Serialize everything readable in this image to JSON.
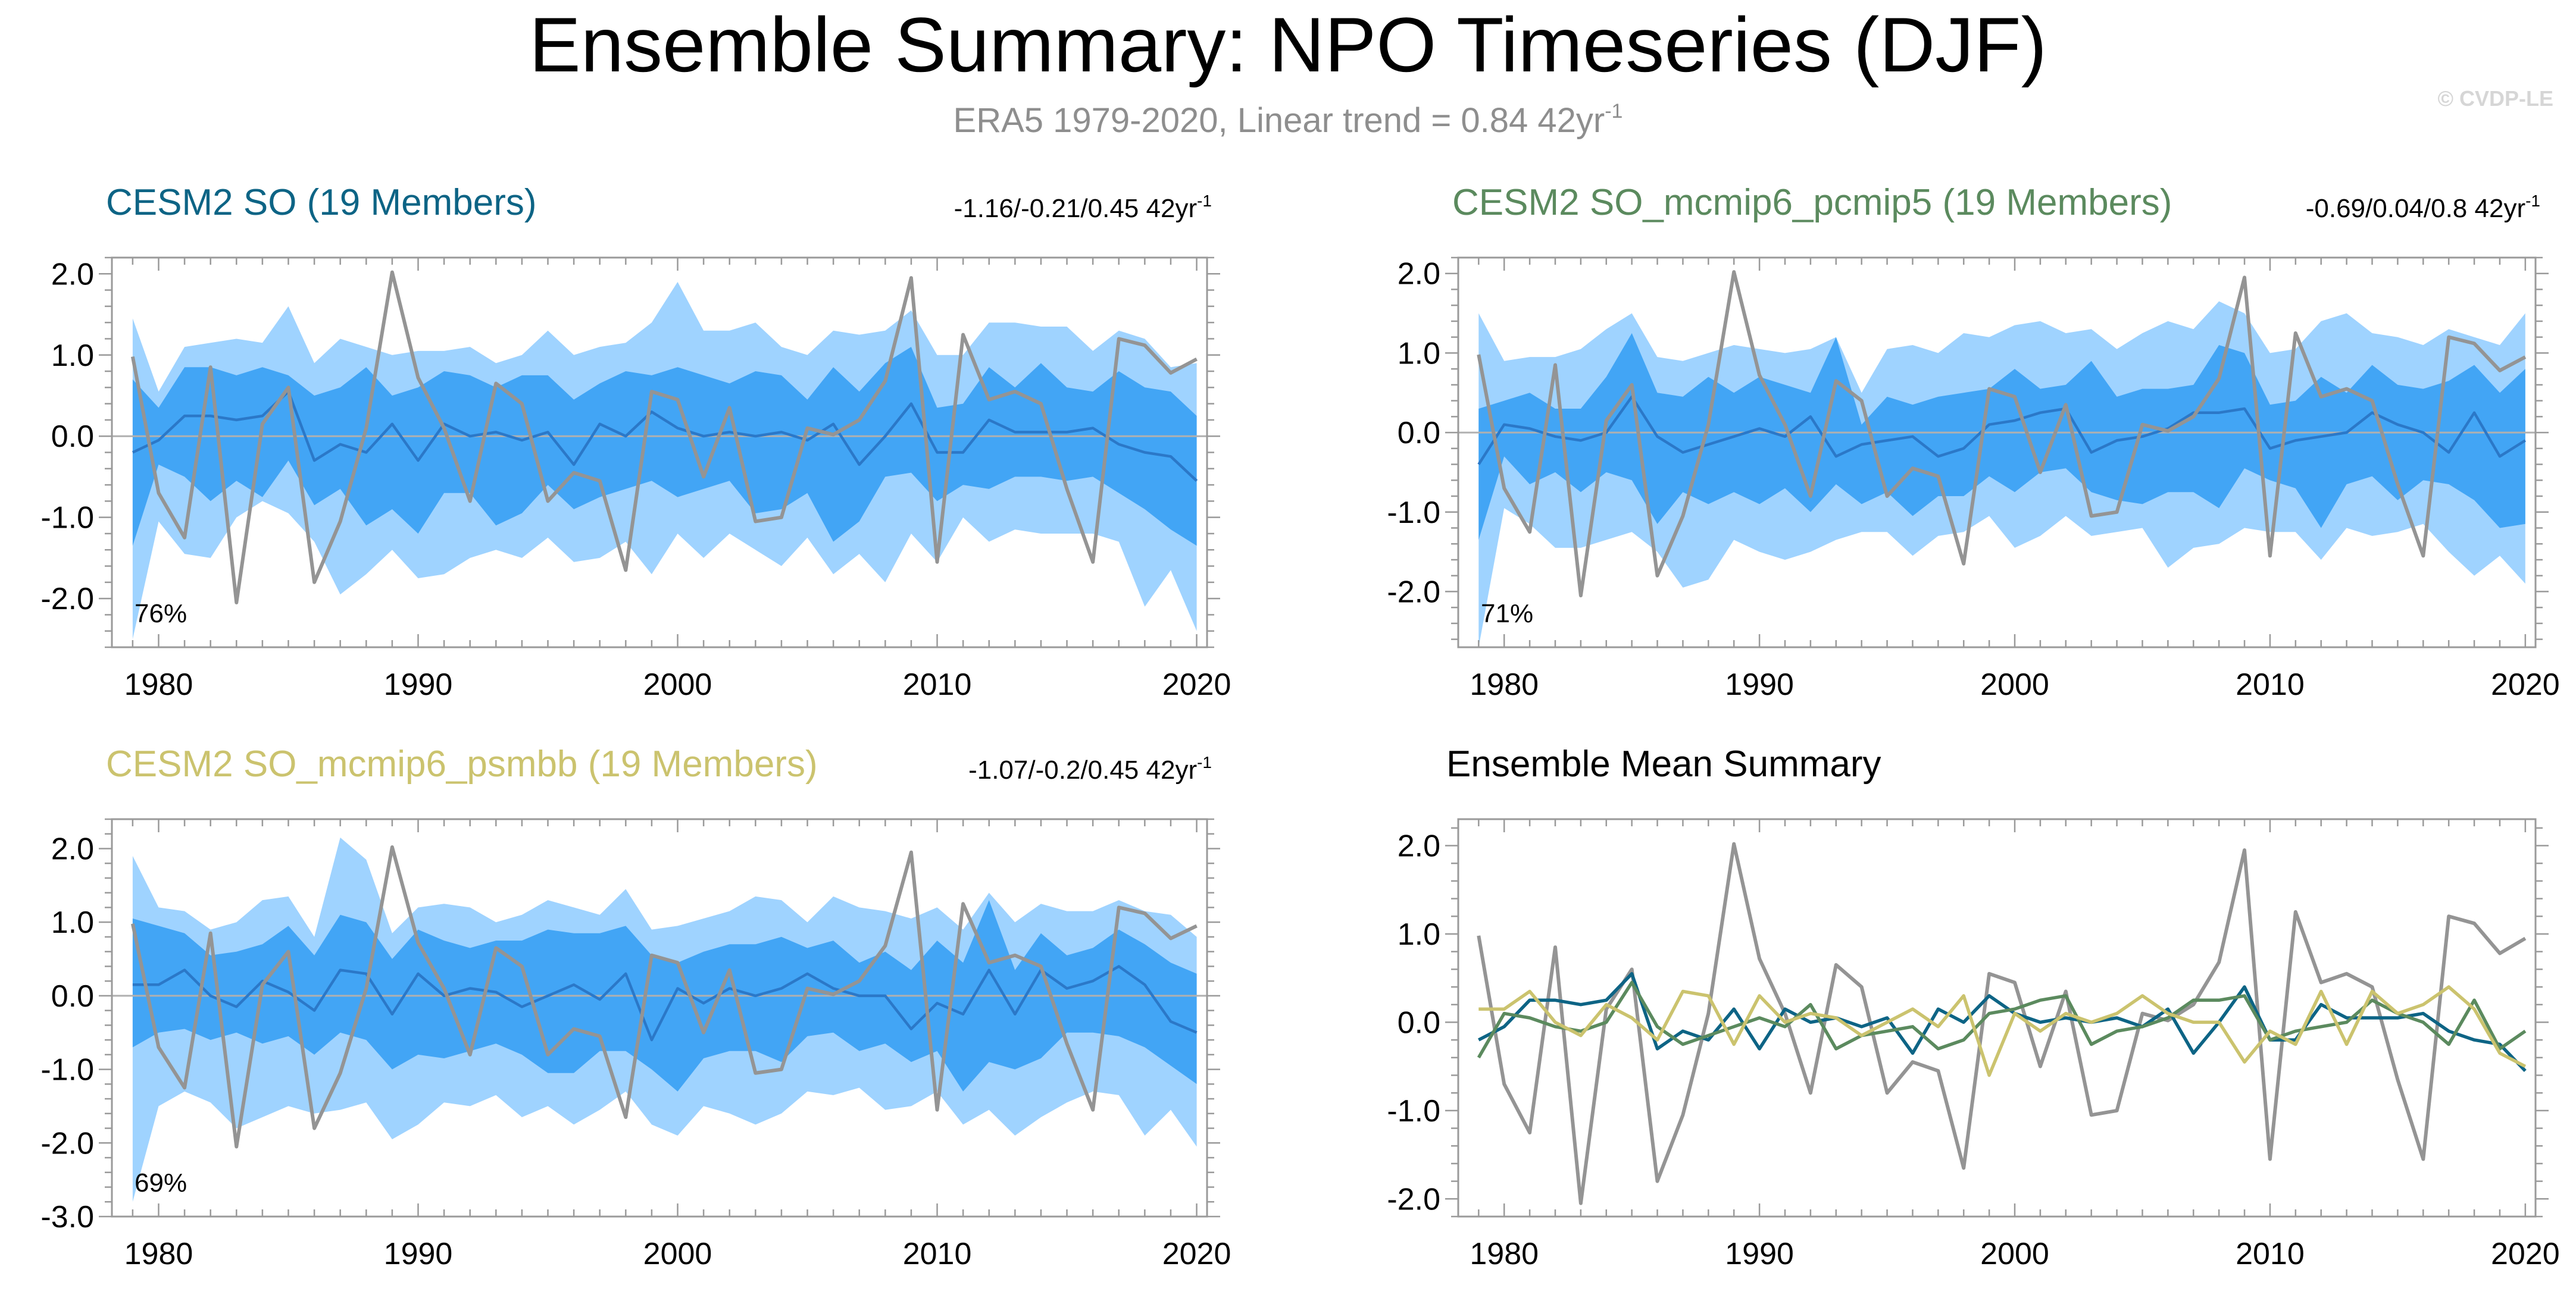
{
  "title": "Ensemble Summary: NPO Timeseries (DJF)",
  "subtitle_main": "ERA5 1979-2020, Linear trend = 0.84 42yr",
  "subtitle_sup": "-1",
  "credit": "© CVDP-LE",
  "colors": {
    "outer_band": "#9fd3ff",
    "inner_band": "#42a5f5",
    "ens_mean_line": "#2b78c8",
    "obs_line": "#949494",
    "zero_line": "#b0b0b0",
    "axis": "#9a9a9a",
    "cesm2_so": "#0d6485",
    "pcmip5": "#5b8a5e",
    "psmbb": "#cbc36e"
  },
  "chart_data": [
    {
      "id": "p1",
      "type": "area",
      "title": "CESM2 SO (19 Members)",
      "title_color": "#0d6485",
      "trend_text": "-1.16/-0.21/0.45 42yr",
      "trend_sup": "-1",
      "pct_text": "76%",
      "xlim": [
        1978.2,
        2020.4
      ],
      "ylim": [
        -2.6,
        2.2
      ],
      "xticks": [
        "1980",
        "1990",
        "2000",
        "2010",
        "2020"
      ],
      "yticks": [
        "2.0",
        "1.0",
        "0.0",
        "-1.0",
        "-2.0"
      ],
      "ytick_values": [
        2,
        1,
        0,
        -1,
        -2
      ],
      "years": [
        1979,
        1980,
        1981,
        1982,
        1983,
        1984,
        1985,
        1986,
        1987,
        1988,
        1989,
        1990,
        1991,
        1992,
        1993,
        1994,
        1995,
        1996,
        1997,
        1998,
        1999,
        2000,
        2001,
        2002,
        2003,
        2004,
        2005,
        2006,
        2007,
        2008,
        2009,
        2010,
        2011,
        2012,
        2013,
        2014,
        2015,
        2016,
        2017,
        2018,
        2019,
        2020
      ],
      "outer_upper": [
        1.45,
        0.55,
        1.1,
        1.15,
        1.2,
        1.15,
        1.6,
        0.9,
        1.2,
        1.1,
        1.0,
        1.05,
        1.05,
        1.1,
        0.9,
        1.0,
        1.3,
        1.0,
        1.1,
        1.15,
        1.4,
        1.9,
        1.3,
        1.3,
        1.4,
        1.1,
        1.0,
        1.3,
        1.25,
        1.3,
        1.55,
        1.0,
        1.0,
        1.4,
        1.4,
        1.35,
        1.35,
        1.05,
        1.3,
        1.2,
        0.85,
        0.9
      ],
      "inner_upper": [
        0.7,
        0.35,
        0.85,
        0.85,
        0.75,
        0.85,
        0.75,
        0.5,
        0.6,
        0.85,
        0.5,
        0.6,
        0.8,
        0.75,
        0.6,
        0.75,
        0.75,
        0.45,
        0.65,
        0.8,
        0.75,
        0.85,
        0.75,
        0.65,
        0.8,
        0.75,
        0.45,
        0.85,
        0.55,
        0.9,
        1.1,
        0.35,
        0.4,
        0.85,
        0.6,
        0.9,
        0.6,
        0.55,
        0.8,
        0.6,
        0.55,
        0.25
      ],
      "inner_lower": [
        -1.35,
        -0.35,
        -0.5,
        -0.8,
        -0.55,
        -0.75,
        -0.3,
        -0.85,
        -0.65,
        -1.1,
        -0.9,
        -1.2,
        -0.7,
        -0.7,
        -1.1,
        -0.95,
        -0.6,
        -0.9,
        -0.75,
        -0.65,
        -0.55,
        -0.75,
        -0.65,
        -0.55,
        -0.95,
        -0.9,
        -0.7,
        -1.3,
        -1.05,
        -0.5,
        -0.45,
        -0.8,
        -0.6,
        -0.65,
        -0.5,
        -0.5,
        -0.55,
        -0.5,
        -0.7,
        -0.9,
        -1.15,
        -1.35
      ],
      "outer_lower": [
        -2.5,
        -1.05,
        -1.45,
        -1.5,
        -1.0,
        -0.8,
        -0.95,
        -1.3,
        -1.95,
        -1.7,
        -1.4,
        -1.75,
        -1.7,
        -1.5,
        -1.4,
        -1.5,
        -1.25,
        -1.55,
        -1.5,
        -1.3,
        -1.7,
        -1.2,
        -1.5,
        -1.2,
        -1.4,
        -1.6,
        -1.25,
        -1.7,
        -1.45,
        -1.8,
        -1.2,
        -1.55,
        -1.0,
        -1.3,
        -1.15,
        -1.2,
        -1.2,
        -1.2,
        -1.3,
        -2.1,
        -1.65,
        -2.4
      ],
      "ens_mean": [
        -0.2,
        -0.05,
        0.25,
        0.25,
        0.2,
        0.25,
        0.55,
        -0.3,
        -0.1,
        -0.2,
        0.15,
        -0.3,
        0.15,
        0.0,
        0.05,
        -0.05,
        0.05,
        -0.35,
        0.15,
        0.0,
        0.3,
        0.1,
        0.0,
        0.05,
        0.0,
        0.05,
        -0.05,
        0.15,
        -0.35,
        0.0,
        0.4,
        -0.2,
        -0.2,
        0.2,
        0.05,
        0.05,
        0.05,
        0.1,
        -0.1,
        -0.2,
        -0.25,
        -0.55
      ],
      "obs": [
        0.98,
        -0.7,
        -1.25,
        0.85,
        -2.05,
        0.15,
        0.6,
        -1.8,
        -1.05,
        0.1,
        2.02,
        0.72,
        0.1,
        -0.8,
        0.65,
        0.4,
        -0.8,
        -0.45,
        -0.55,
        -1.65,
        0.55,
        0.45,
        -0.5,
        0.35,
        -1.05,
        -1.0,
        0.1,
        0.02,
        0.2,
        0.68,
        1.95,
        -1.55,
        1.25,
        0.45,
        0.55,
        0.4,
        -0.65,
        -1.55,
        1.2,
        1.12,
        0.78,
        0.95
      ]
    },
    {
      "id": "p2",
      "type": "area",
      "title": "CESM2 SO_mcmip6_pcmip5 (19 Members)",
      "title_color": "#5b8a5e",
      "trend_text": "-0.69/0.04/0.8 42yr",
      "trend_sup": "-1",
      "pct_text": "71%",
      "xlim": [
        1978.2,
        2020.4
      ],
      "ylim": [
        -2.7,
        2.2
      ],
      "xticks": [
        "1980",
        "1990",
        "2000",
        "2010",
        "2020"
      ],
      "yticks": [
        "2.0",
        "1.0",
        "0.0",
        "-1.0",
        "-2.0"
      ],
      "ytick_values": [
        2,
        1,
        0,
        -1,
        -2
      ],
      "years": [
        1979,
        1980,
        1981,
        1982,
        1983,
        1984,
        1985,
        1986,
        1987,
        1988,
        1989,
        1990,
        1991,
        1992,
        1993,
        1994,
        1995,
        1996,
        1997,
        1998,
        1999,
        2000,
        2001,
        2002,
        2003,
        2004,
        2005,
        2006,
        2007,
        2008,
        2009,
        2010,
        2011,
        2012,
        2013,
        2014,
        2015,
        2016,
        2017,
        2018,
        2019,
        2020
      ],
      "outer_upper": [
        1.5,
        0.9,
        0.95,
        0.95,
        1.05,
        1.3,
        1.5,
        0.95,
        0.9,
        1.0,
        1.1,
        1.05,
        1.0,
        1.05,
        1.2,
        0.5,
        1.05,
        1.1,
        1.0,
        1.25,
        1.2,
        1.35,
        1.4,
        1.25,
        1.3,
        1.05,
        1.25,
        1.4,
        1.3,
        1.65,
        1.5,
        1.0,
        1.05,
        1.4,
        1.5,
        1.25,
        1.2,
        1.1,
        1.3,
        1.2,
        1.1,
        1.5
      ],
      "inner_upper": [
        0.3,
        0.4,
        0.5,
        0.3,
        0.3,
        0.7,
        1.25,
        0.5,
        0.45,
        0.7,
        0.5,
        0.7,
        0.6,
        0.5,
        1.2,
        0.1,
        0.45,
        0.35,
        0.45,
        0.5,
        0.55,
        0.8,
        0.55,
        0.6,
        0.9,
        0.45,
        0.55,
        0.55,
        0.6,
        1.1,
        1.0,
        0.35,
        0.4,
        0.7,
        0.5,
        0.85,
        0.6,
        0.55,
        0.65,
        0.85,
        0.5,
        0.8
      ],
      "inner_lower": [
        -1.35,
        -0.3,
        -0.65,
        -0.5,
        -0.75,
        -0.5,
        -0.6,
        -1.15,
        -0.75,
        -0.9,
        -0.75,
        -0.9,
        -0.7,
        -1.0,
        -0.65,
        -0.9,
        -0.75,
        -1.05,
        -0.8,
        -0.8,
        -0.55,
        -0.75,
        -0.5,
        -0.45,
        -0.75,
        -0.85,
        -0.9,
        -0.75,
        -0.75,
        -0.95,
        -0.45,
        -0.6,
        -0.7,
        -1.2,
        -0.65,
        -0.55,
        -0.85,
        -0.6,
        -0.65,
        -0.85,
        -1.2,
        -1.15
      ],
      "outer_lower": [
        -2.7,
        -0.95,
        -1.15,
        -1.45,
        -1.45,
        -1.35,
        -1.25,
        -1.5,
        -1.95,
        -1.85,
        -1.35,
        -1.5,
        -1.6,
        -1.5,
        -1.35,
        -1.25,
        -1.25,
        -1.55,
        -1.3,
        -1.25,
        -1.05,
        -1.45,
        -1.3,
        -1.05,
        -1.3,
        -1.25,
        -1.2,
        -1.7,
        -1.45,
        -1.4,
        -1.2,
        -1.25,
        -1.25,
        -1.6,
        -1.2,
        -1.3,
        -1.25,
        -1.15,
        -1.5,
        -1.8,
        -1.55,
        -1.9
      ],
      "ens_mean": [
        -0.4,
        0.1,
        0.05,
        -0.05,
        -0.1,
        0.0,
        0.45,
        -0.05,
        -0.25,
        -0.15,
        -0.05,
        0.05,
        -0.05,
        0.2,
        -0.3,
        -0.15,
        -0.1,
        -0.05,
        -0.3,
        -0.2,
        0.1,
        0.15,
        0.25,
        0.3,
        -0.25,
        -0.1,
        -0.05,
        0.05,
        0.25,
        0.25,
        0.3,
        -0.2,
        -0.1,
        -0.05,
        0.0,
        0.25,
        0.1,
        0.0,
        -0.25,
        0.25,
        -0.3,
        -0.1
      ],
      "obs": [
        0.98,
        -0.7,
        -1.25,
        0.85,
        -2.05,
        0.15,
        0.6,
        -1.8,
        -1.05,
        0.1,
        2.02,
        0.72,
        0.1,
        -0.8,
        0.65,
        0.4,
        -0.8,
        -0.45,
        -0.55,
        -1.65,
        0.55,
        0.45,
        -0.5,
        0.35,
        -1.05,
        -1.0,
        0.1,
        0.02,
        0.2,
        0.68,
        1.95,
        -1.55,
        1.25,
        0.45,
        0.55,
        0.4,
        -0.65,
        -1.55,
        1.2,
        1.12,
        0.78,
        0.95
      ]
    },
    {
      "id": "p3",
      "type": "area",
      "title": "CESM2 SO_mcmip6_psmbb (19 Members)",
      "title_color": "#cbc36e",
      "trend_text": "-1.07/-0.2/0.45 42yr",
      "trend_sup": "-1",
      "pct_text": "69%",
      "xlim": [
        1978.2,
        2020.4
      ],
      "ylim": [
        -3.0,
        2.4
      ],
      "xticks": [
        "1980",
        "1990",
        "2000",
        "2010",
        "2020"
      ],
      "yticks": [
        "2.0",
        "1.0",
        "0.0",
        "-1.0",
        "-2.0",
        "-3.0"
      ],
      "ytick_values": [
        2,
        1,
        0,
        -1,
        -2,
        -3
      ],
      "years": [
        1979,
        1980,
        1981,
        1982,
        1983,
        1984,
        1985,
        1986,
        1987,
        1988,
        1989,
        1990,
        1991,
        1992,
        1993,
        1994,
        1995,
        1996,
        1997,
        1998,
        1999,
        2000,
        2001,
        2002,
        2003,
        2004,
        2005,
        2006,
        2007,
        2008,
        2009,
        2010,
        2011,
        2012,
        2013,
        2014,
        2015,
        2016,
        2017,
        2018,
        2019,
        2020
      ],
      "outer_upper": [
        1.9,
        1.2,
        1.15,
        0.9,
        1.0,
        1.3,
        1.35,
        0.8,
        2.15,
        1.85,
        0.85,
        1.2,
        1.25,
        1.2,
        1.0,
        1.1,
        1.3,
        1.2,
        1.1,
        1.45,
        0.9,
        0.95,
        1.05,
        1.15,
        1.35,
        1.3,
        1.0,
        1.35,
        1.2,
        1.15,
        1.05,
        1.2,
        0.9,
        1.4,
        1.0,
        1.25,
        1.15,
        1.15,
        1.3,
        1.15,
        1.1,
        0.8
      ],
      "inner_upper": [
        1.05,
        0.95,
        0.85,
        0.55,
        0.6,
        0.7,
        0.95,
        0.55,
        1.1,
        1.0,
        0.5,
        0.9,
        0.75,
        0.65,
        0.75,
        0.75,
        0.9,
        0.85,
        0.85,
        0.95,
        0.55,
        0.45,
        0.6,
        0.7,
        0.7,
        0.8,
        0.65,
        0.75,
        0.45,
        0.6,
        0.35,
        0.75,
        0.45,
        1.3,
        0.35,
        0.85,
        0.55,
        0.65,
        0.9,
        0.7,
        0.45,
        0.3
      ],
      "inner_lower": [
        -0.7,
        -0.5,
        -0.45,
        -0.6,
        -0.5,
        -0.65,
        -0.55,
        -0.8,
        -0.5,
        -0.6,
        -1.0,
        -0.8,
        -0.85,
        -0.75,
        -0.65,
        -0.8,
        -1.05,
        -1.05,
        -0.75,
        -0.75,
        -1.0,
        -1.3,
        -0.85,
        -0.75,
        -0.75,
        -0.9,
        -0.55,
        -0.5,
        -0.75,
        -0.65,
        -0.9,
        -0.75,
        -1.3,
        -0.9,
        -1.0,
        -0.85,
        -0.5,
        -0.5,
        -0.55,
        -0.7,
        -0.95,
        -1.2
      ],
      "outer_lower": [
        -2.8,
        -1.5,
        -1.3,
        -1.45,
        -1.8,
        -1.65,
        -1.5,
        -1.6,
        -1.55,
        -1.45,
        -1.95,
        -1.75,
        -1.45,
        -1.5,
        -1.35,
        -1.65,
        -1.5,
        -1.75,
        -1.55,
        -1.3,
        -1.75,
        -1.9,
        -1.5,
        -1.6,
        -1.75,
        -1.6,
        -1.3,
        -1.35,
        -1.25,
        -1.55,
        -1.5,
        -1.3,
        -1.75,
        -1.55,
        -1.9,
        -1.65,
        -1.45,
        -1.3,
        -1.35,
        -1.9,
        -1.55,
        -2.05
      ],
      "ens_mean": [
        0.15,
        0.15,
        0.35,
        0.0,
        -0.15,
        0.2,
        0.05,
        -0.2,
        0.35,
        0.3,
        -0.25,
        0.3,
        0.0,
        0.1,
        0.05,
        -0.15,
        0.0,
        0.15,
        -0.05,
        0.3,
        -0.6,
        0.1,
        -0.1,
        0.1,
        0.0,
        0.1,
        0.3,
        0.1,
        0.0,
        0.0,
        -0.45,
        -0.1,
        -0.25,
        0.35,
        -0.25,
        0.35,
        0.1,
        0.2,
        0.4,
        0.15,
        -0.35,
        -0.5
      ],
      "obs": [
        0.98,
        -0.7,
        -1.25,
        0.85,
        -2.05,
        0.15,
        0.6,
        -1.8,
        -1.05,
        0.1,
        2.02,
        0.72,
        0.1,
        -0.8,
        0.65,
        0.4,
        -0.8,
        -0.45,
        -0.55,
        -1.65,
        0.55,
        0.45,
        -0.5,
        0.35,
        -1.05,
        -1.0,
        0.1,
        0.02,
        0.2,
        0.68,
        1.95,
        -1.55,
        1.25,
        0.45,
        0.55,
        0.4,
        -0.65,
        -1.55,
        1.2,
        1.12,
        0.78,
        0.95
      ]
    },
    {
      "id": "p4",
      "type": "line",
      "title": "Ensemble Mean Summary",
      "title_color": "#000000",
      "xlim": [
        1978.2,
        2020.4
      ],
      "ylim": [
        -2.2,
        2.3
      ],
      "xticks": [
        "1980",
        "1990",
        "2000",
        "2010",
        "2020"
      ],
      "yticks": [
        "2.0",
        "1.0",
        "0.0",
        "-1.0",
        "-2.0"
      ],
      "ytick_values": [
        2,
        1,
        0,
        -1,
        -2
      ],
      "years": [
        1979,
        1980,
        1981,
        1982,
        1983,
        1984,
        1985,
        1986,
        1987,
        1988,
        1989,
        1990,
        1991,
        1992,
        1993,
        1994,
        1995,
        1996,
        1997,
        1998,
        1999,
        2000,
        2001,
        2002,
        2003,
        2004,
        2005,
        2006,
        2007,
        2008,
        2009,
        2010,
        2011,
        2012,
        2013,
        2014,
        2015,
        2016,
        2017,
        2018,
        2019,
        2020
      ],
      "series": [
        {
          "name": "ERA5",
          "color": "#949494",
          "values": [
            0.98,
            -0.7,
            -1.25,
            0.85,
            -2.05,
            0.15,
            0.6,
            -1.8,
            -1.05,
            0.1,
            2.02,
            0.72,
            0.1,
            -0.8,
            0.65,
            0.4,
            -0.8,
            -0.45,
            -0.55,
            -1.65,
            0.55,
            0.45,
            -0.5,
            0.35,
            -1.05,
            -1.0,
            0.1,
            0.02,
            0.2,
            0.68,
            1.95,
            -1.55,
            1.25,
            0.45,
            0.55,
            0.4,
            -0.65,
            -1.55,
            1.2,
            1.12,
            0.78,
            0.95
          ]
        },
        {
          "name": "CESM2 SO",
          "color": "#0d6485",
          "values": [
            -0.2,
            -0.05,
            0.25,
            0.25,
            0.2,
            0.25,
            0.55,
            -0.3,
            -0.1,
            -0.2,
            0.15,
            -0.3,
            0.15,
            0.0,
            0.05,
            -0.05,
            0.05,
            -0.35,
            0.15,
            0.0,
            0.3,
            0.1,
            0.0,
            0.05,
            0.0,
            0.05,
            -0.05,
            0.15,
            -0.35,
            0.0,
            0.4,
            -0.2,
            -0.2,
            0.2,
            0.05,
            0.05,
            0.05,
            0.1,
            -0.1,
            -0.2,
            -0.25,
            -0.55
          ]
        },
        {
          "name": "CESM2 SO_mcmip6_pcmip5",
          "color": "#5b8a5e",
          "values": [
            -0.4,
            0.1,
            0.05,
            -0.05,
            -0.1,
            0.0,
            0.45,
            -0.05,
            -0.25,
            -0.15,
            -0.05,
            0.05,
            -0.05,
            0.2,
            -0.3,
            -0.15,
            -0.1,
            -0.05,
            -0.3,
            -0.2,
            0.1,
            0.15,
            0.25,
            0.3,
            -0.25,
            -0.1,
            -0.05,
            0.05,
            0.25,
            0.25,
            0.3,
            -0.2,
            -0.1,
            -0.05,
            0.0,
            0.25,
            0.1,
            0.0,
            -0.25,
            0.25,
            -0.3,
            -0.1
          ]
        },
        {
          "name": "CESM2 SO_mcmip6_psmbb",
          "color": "#cbc36e",
          "values": [
            0.15,
            0.15,
            0.35,
            0.0,
            -0.15,
            0.2,
            0.05,
            -0.2,
            0.35,
            0.3,
            -0.25,
            0.3,
            0.0,
            0.1,
            0.05,
            -0.15,
            0.0,
            0.15,
            -0.05,
            0.3,
            -0.6,
            0.1,
            -0.1,
            0.1,
            0.0,
            0.1,
            0.3,
            0.1,
            0.0,
            0.0,
            -0.45,
            -0.1,
            -0.25,
            0.35,
            -0.25,
            0.35,
            0.1,
            0.2,
            0.4,
            0.15,
            -0.35,
            -0.5
          ]
        }
      ]
    }
  ]
}
